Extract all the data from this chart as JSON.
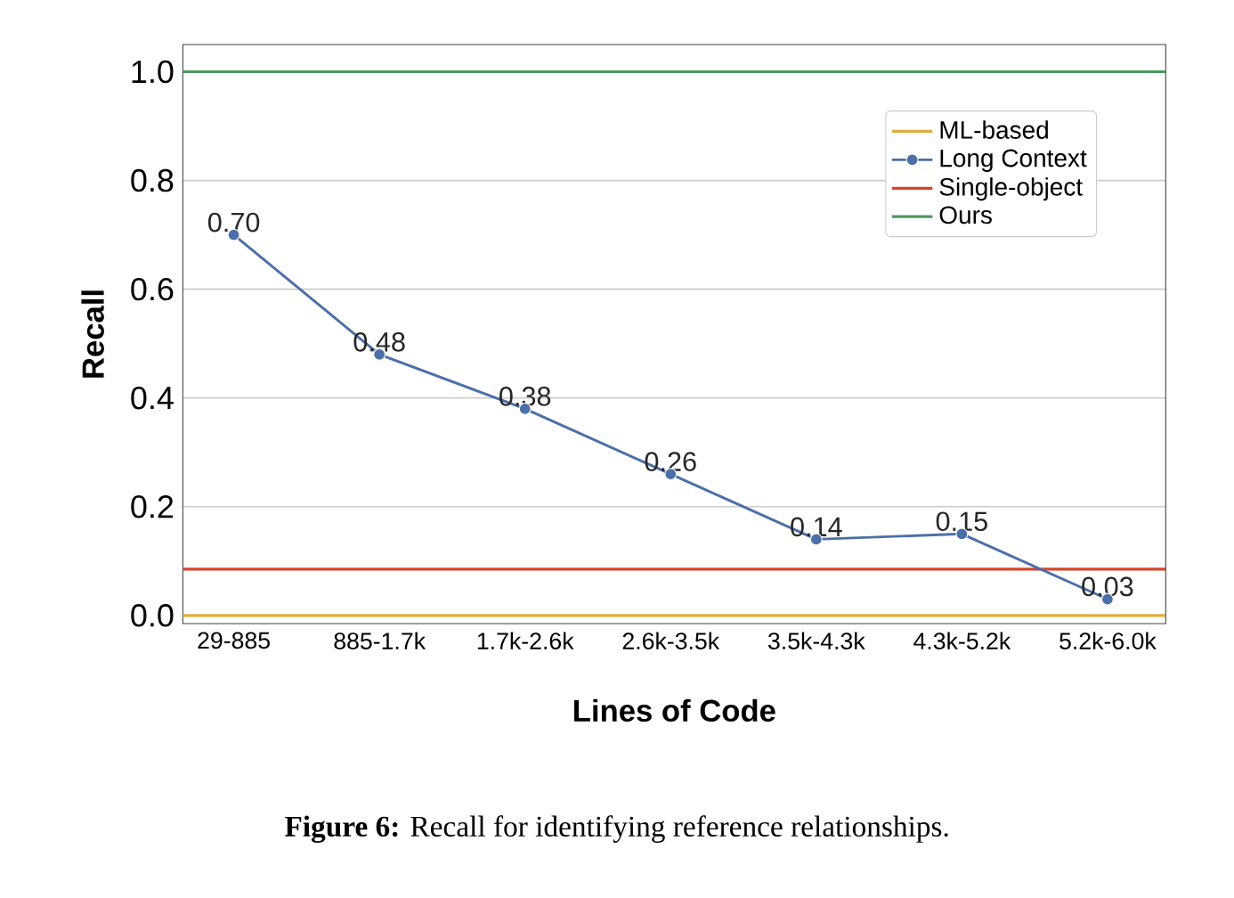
{
  "chart_data": {
    "type": "line",
    "xlabel": "Lines of Code",
    "ylabel": "Recall",
    "categories": [
      "29-885",
      "885-1.7k",
      "1.7k-2.6k",
      "2.6k-3.5k",
      "3.5k-4.3k",
      "4.3k-5.2k",
      "5.2k-6.0k"
    ],
    "series": [
      {
        "name": "Long Context",
        "color": "#4c6fa8",
        "values": [
          0.7,
          0.48,
          0.38,
          0.26,
          0.14,
          0.15,
          0.03
        ],
        "value_labels": [
          "0.70",
          "0.48",
          "0.38",
          "0.26",
          "0.14",
          "0.15",
          "0.03"
        ]
      }
    ],
    "ref_lines": [
      {
        "axis": "y",
        "value": 0,
        "label": "ML-based",
        "color": "#e3ae3f"
      },
      {
        "axis": "y",
        "value": 0.085,
        "label": "Single-object",
        "color": "#d6452a"
      },
      {
        "axis": "y",
        "value": 1.0,
        "label": "Ours",
        "color": "#4a9a5e"
      }
    ],
    "ylim": [
      -0.015,
      1.05
    ],
    "yticks": [
      {
        "value": 0,
        "label": "0.0"
      },
      {
        "value": 0.2,
        "label": "0.2"
      },
      {
        "value": 0.4,
        "label": "0.4"
      },
      {
        "value": 0.6,
        "label": "0.6"
      },
      {
        "value": 0.8,
        "label": "0.8"
      },
      {
        "value": 1.0,
        "label": "1.0"
      }
    ],
    "grid": "y",
    "legend": "top right",
    "marker": "circle",
    "line_style": "solid",
    "annotations": [
      "**Figure 6:** Recall for identifying reference relationships."
    ]
  }
}
